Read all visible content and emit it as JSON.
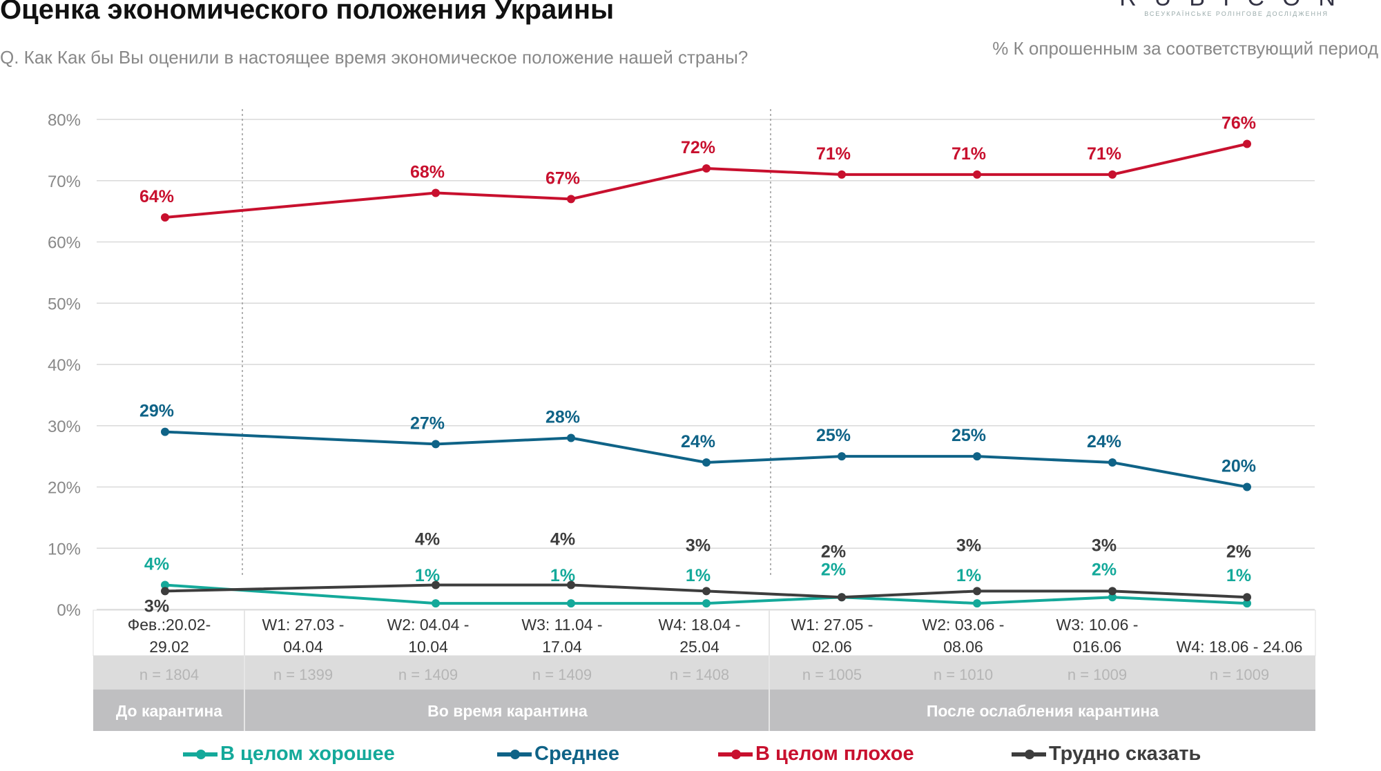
{
  "header": {
    "title": "Оценка экономического положения Украины",
    "subtitle": "Q. Как Как бы Вы оценили в настоящее время экономическое положение нашей страны?",
    "note": "% К опрошенным за соответствующий период"
  },
  "logo": {
    "word": "RUBICON",
    "tagline": "ВСЕУКРАЇНСЬКЕ РОЛІНГОВЕ ДОСЛІДЖЕННЯ"
  },
  "chart_data": {
    "type": "line",
    "title": "Оценка экономического положения Украины",
    "ylim": [
      0,
      80
    ],
    "yticks": [
      "0%",
      "10%",
      "20%",
      "30%",
      "40%",
      "50%",
      "60%",
      "70%",
      "80%"
    ],
    "grid": true,
    "legend_position": "bottom",
    "categories": [
      {
        "line1": "Фев.:20.02-",
        "line2": "29.02",
        "n": "n = 1804"
      },
      {
        "line1": "W1: 27.03 -",
        "line2": "04.04",
        "n": "n = 1399"
      },
      {
        "line1": "W2: 04.04 -",
        "line2": "10.04",
        "n": "n = 1409"
      },
      {
        "line1": "W3: 11.04 -",
        "line2": "17.04",
        "n": "n = 1409"
      },
      {
        "line1": "W4: 18.04 -",
        "line2": "25.04",
        "n": "n = 1408"
      },
      {
        "line1": "W1: 27.05 -",
        "line2": "02.06",
        "n": "n = 1005"
      },
      {
        "line1": "W2: 03.06 -",
        "line2": "08.06",
        "n": "n = 1010"
      },
      {
        "line1": "W3: 10.06 -",
        "line2": "016.06",
        "n": "n = 1009"
      },
      {
        "line1": "",
        "line2": "W4: 18.06 -   24.06",
        "n": "n = 1009"
      }
    ],
    "periods": [
      "До карантина",
      "Во время карантина",
      "После ослабления карантина"
    ],
    "series": [
      {
        "name": "В целом хорошее",
        "color": "#14a99a",
        "values": [
          4,
          null,
          1,
          1,
          1,
          2,
          1,
          2,
          1
        ]
      },
      {
        "name": "Среднее",
        "color": "#0f6387",
        "values": [
          29,
          null,
          27,
          28,
          24,
          25,
          25,
          24,
          20
        ]
      },
      {
        "name": "В целом плохое",
        "color": "#c8102e",
        "values": [
          64,
          null,
          68,
          67,
          72,
          71,
          71,
          71,
          76
        ]
      },
      {
        "name": "Трудно сказать",
        "color": "#3d3d3d",
        "values": [
          3,
          null,
          4,
          4,
          3,
          2,
          3,
          3,
          2
        ]
      }
    ]
  }
}
